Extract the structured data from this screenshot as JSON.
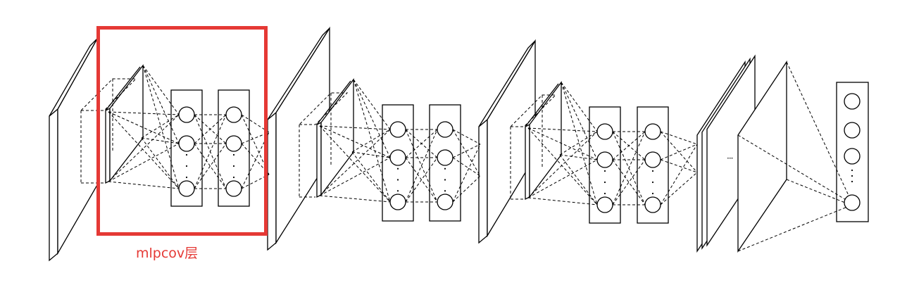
{
  "highlight": {
    "label": "mlpcov层",
    "color": "#e53935"
  },
  "between_layers_ellipsis": "···",
  "stroke_color": "#000000",
  "blocks": 3
}
